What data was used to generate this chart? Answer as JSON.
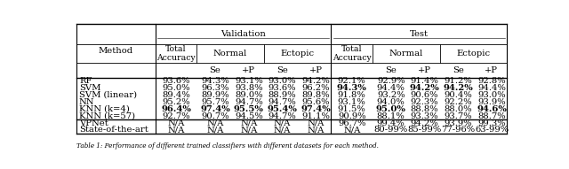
{
  "rows": [
    [
      "RF",
      "93.6%",
      "94.3%",
      "93.1%",
      "93.0%",
      "94.2%",
      "92.1%",
      "92.9%",
      "91.4%",
      "91.2%",
      "92.8%"
    ],
    [
      "SVM",
      "95.0%",
      "96.3%",
      "93.8%",
      "93.6%",
      "96.2%",
      "94.3%",
      "94.4%",
      "94.2%",
      "94.2%",
      "94.4%"
    ],
    [
      "SVM (linear)",
      "89.4%",
      "89.9%",
      "89.0%",
      "88.9%",
      "89.8%",
      "91.8%",
      "93.2%",
      "90.6%",
      "90.4%",
      "93.0%"
    ],
    [
      "NN",
      "95.2%",
      "95.7%",
      "94.7%",
      "94.7%",
      "95.6%",
      "93.1%",
      "94.0%",
      "92.3%",
      "92.2%",
      "93.9%"
    ],
    [
      "KNN (k=4)",
      "96.4%",
      "97.4%",
      "95.5%",
      "95.4%",
      "97.4%",
      "91.5%",
      "95.0%",
      "88.8%",
      "88.0%",
      "94.6%"
    ],
    [
      "KNN (k=57)",
      "92.7%",
      "90.7%",
      "94.5%",
      "94.7%",
      "91.1%",
      "90.9%",
      "88.1%",
      "93.3%",
      "93.7%",
      "88.7%"
    ],
    [
      "VPNet",
      "N/A",
      "N/A",
      "N/A",
      "N/A",
      "N/A",
      "96.7%",
      "99.4%",
      "94.2%",
      "93.9%",
      "99.3%"
    ],
    [
      "State-of-the-art",
      "N/A",
      "N/A",
      "N/A",
      "N/A",
      "N/A",
      "N/A",
      "80-99%",
      "85-99%",
      "77-96%",
      "63-99%"
    ]
  ],
  "bold_cells": [
    [],
    [
      6,
      8,
      9
    ],
    [],
    [],
    [
      1,
      2,
      3,
      4,
      5,
      7,
      10
    ],
    [],
    [],
    []
  ],
  "background_color": "#ffffff",
  "font_size": 7.2,
  "caption": "Table 1: Performance of different trained classifiers with different datasets for each method."
}
